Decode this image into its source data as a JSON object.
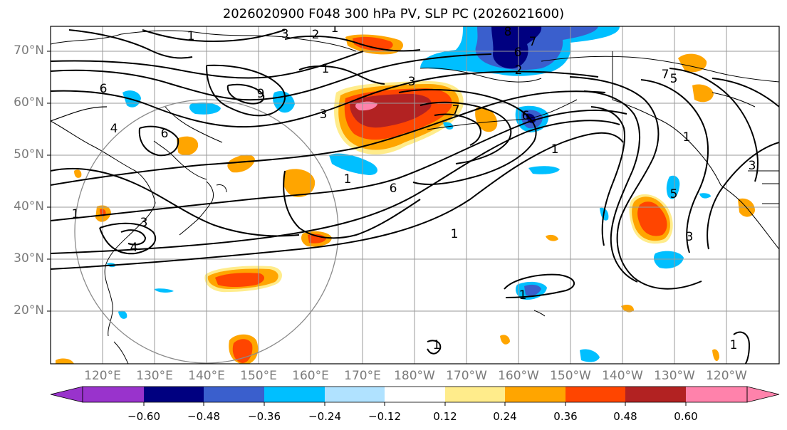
{
  "title": "2026020900 F048 300 hPa PV, SLP PC (2026021600)",
  "lat_labels": [
    "70°N",
    "60°N",
    "50°N",
    "40°N",
    "30°N",
    "20°N"
  ],
  "lon_labels": [
    "120°E",
    "130°E",
    "140°E",
    "150°E",
    "160°E",
    "170°E",
    "180°W",
    "170°W",
    "160°W",
    "150°W",
    "140°W",
    "130°W",
    "120°W"
  ],
  "colorbar": {
    "colors": [
      "#9933cc",
      "#000080",
      "#3a5fcd",
      "#00bfff",
      "#b0e2ff",
      "#ffffff",
      "#ffec8b",
      "#ffa500",
      "#ff4500",
      "#b22222",
      "#ff82ab"
    ],
    "ticks": [
      "−0.60",
      "−0.48",
      "−0.36",
      "−0.24",
      "−0.12",
      "0.12",
      "0.24",
      "0.36",
      "0.48",
      "0.60"
    ]
  },
  "contour_labels": [
    "1",
    "3",
    "2",
    "1",
    "8",
    "7",
    "6",
    "2",
    "1",
    "6",
    "9",
    "3",
    "4",
    "6",
    "6",
    "7",
    "3",
    "6",
    "1",
    "1",
    "3",
    "4",
    "1",
    "1",
    "7",
    "5",
    "5",
    "3",
    "3",
    "1",
    "1",
    "1",
    "1"
  ]
}
